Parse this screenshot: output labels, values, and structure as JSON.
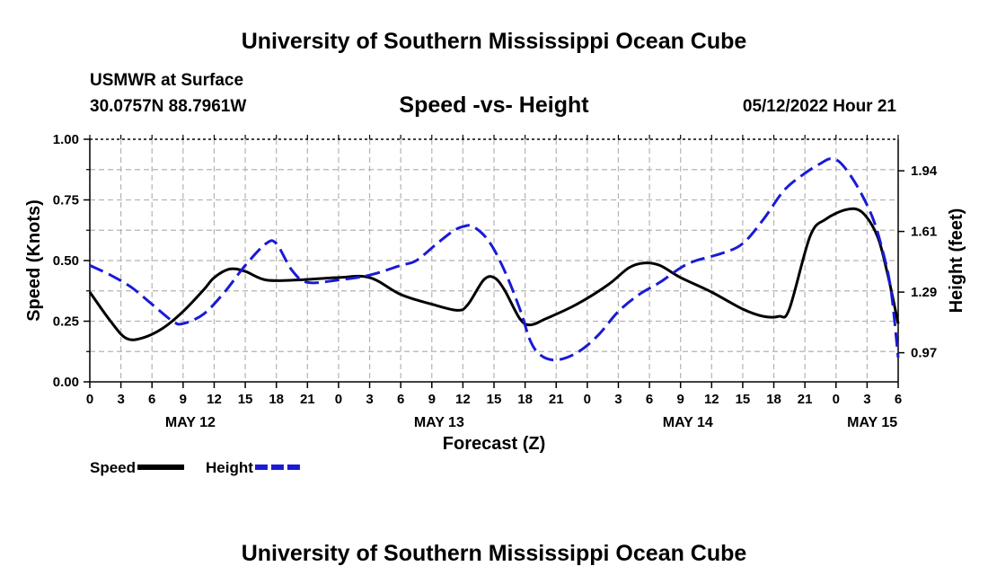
{
  "header": {
    "title": "University of Southern Mississippi Ocean Cube",
    "station": "USMWR at Surface",
    "coords": "30.0757N  88.7961W",
    "subtitle": "Speed -vs- Height",
    "datetime": "05/12/2022 Hour 21"
  },
  "footer": {
    "title": "University of Southern Mississippi Ocean Cube"
  },
  "chart_data": {
    "type": "line",
    "xlabel": "Forecast (Z)",
    "ylabel_left": "Speed (Knots)",
    "ylabel_right": "Height (feet)",
    "x_hours_start": 0,
    "x_hours_end": 78,
    "x_tick_labels": [
      "0",
      "3",
      "6",
      "9",
      "12",
      "15",
      "18",
      "21",
      "0",
      "3",
      "6",
      "9",
      "12",
      "15",
      "18",
      "21",
      "0",
      "3",
      "6",
      "9",
      "12",
      "15",
      "18",
      "21",
      "0",
      "3",
      "6"
    ],
    "date_labels": [
      {
        "label": "MAY 12",
        "hour": 9.7
      },
      {
        "label": "MAY 13",
        "hour": 33.7
      },
      {
        "label": "MAY 14",
        "hour": 57.7
      },
      {
        "label": "MAY 15",
        "hour": 75.5
      }
    ],
    "ylim_left": [
      0,
      1
    ],
    "yticks_left": [
      "0.00",
      "0.25",
      "0.50",
      "0.75",
      "1.00"
    ],
    "right_ticks": [
      {
        "label": "0.97",
        "speed_equiv": 0.12
      },
      {
        "label": "1.29",
        "speed_equiv": 0.37
      },
      {
        "label": "1.61",
        "speed_equiv": 0.62
      },
      {
        "label": "1.94",
        "speed_equiv": 0.87
      }
    ],
    "grid": true,
    "series": [
      {
        "name": "Speed",
        "axis": "left",
        "color": "#000000",
        "style": "solid",
        "points": [
          [
            0,
            0.37
          ],
          [
            2,
            0.25
          ],
          [
            3.5,
            0.18
          ],
          [
            5,
            0.18
          ],
          [
            7,
            0.22
          ],
          [
            9,
            0.29
          ],
          [
            11,
            0.38
          ],
          [
            12,
            0.43
          ],
          [
            13.5,
            0.465
          ],
          [
            15,
            0.455
          ],
          [
            17,
            0.42
          ],
          [
            20,
            0.42
          ],
          [
            24,
            0.43
          ],
          [
            27,
            0.43
          ],
          [
            30,
            0.36
          ],
          [
            33,
            0.32
          ],
          [
            35.5,
            0.295
          ],
          [
            36.5,
            0.32
          ],
          [
            38,
            0.42
          ],
          [
            39,
            0.43
          ],
          [
            40,
            0.38
          ],
          [
            41.5,
            0.26
          ],
          [
            42.5,
            0.235
          ],
          [
            44,
            0.26
          ],
          [
            47,
            0.32
          ],
          [
            50,
            0.4
          ],
          [
            52,
            0.47
          ],
          [
            53.5,
            0.49
          ],
          [
            55,
            0.48
          ],
          [
            57,
            0.43
          ],
          [
            60,
            0.37
          ],
          [
            63,
            0.3
          ],
          [
            65,
            0.27
          ],
          [
            66.5,
            0.27
          ],
          [
            67.5,
            0.3
          ],
          [
            69.5,
            0.6
          ],
          [
            71,
            0.67
          ],
          [
            73,
            0.71
          ],
          [
            74.5,
            0.7
          ],
          [
            76,
            0.6
          ],
          [
            77,
            0.44
          ],
          [
            78,
            0.24
          ]
        ]
      },
      {
        "name": "Height",
        "axis": "right",
        "color": "#1a1ad6",
        "style": "dashed",
        "points": [
          [
            0,
            0.48
          ],
          [
            2,
            0.44
          ],
          [
            4,
            0.39
          ],
          [
            6,
            0.32
          ],
          [
            8,
            0.25
          ],
          [
            9,
            0.24
          ],
          [
            11,
            0.28
          ],
          [
            13,
            0.37
          ],
          [
            15,
            0.48
          ],
          [
            17,
            0.57
          ],
          [
            18,
            0.57
          ],
          [
            19.5,
            0.46
          ],
          [
            21,
            0.41
          ],
          [
            24,
            0.42
          ],
          [
            27,
            0.44
          ],
          [
            30,
            0.48
          ],
          [
            31.5,
            0.5
          ],
          [
            33.5,
            0.57
          ],
          [
            35,
            0.62
          ],
          [
            36,
            0.64
          ],
          [
            37,
            0.64
          ],
          [
            38.5,
            0.58
          ],
          [
            40,
            0.46
          ],
          [
            41.5,
            0.3
          ],
          [
            42.5,
            0.17
          ],
          [
            43.5,
            0.11
          ],
          [
            45,
            0.09
          ],
          [
            47,
            0.12
          ],
          [
            49,
            0.19
          ],
          [
            51,
            0.29
          ],
          [
            53,
            0.36
          ],
          [
            55,
            0.41
          ],
          [
            57,
            0.47
          ],
          [
            58.5,
            0.5
          ],
          [
            61,
            0.53
          ],
          [
            63,
            0.57
          ],
          [
            65,
            0.67
          ],
          [
            67,
            0.79
          ],
          [
            69,
            0.86
          ],
          [
            70.5,
            0.9
          ],
          [
            71.5,
            0.92
          ],
          [
            72.5,
            0.9
          ],
          [
            74,
            0.81
          ],
          [
            75.5,
            0.68
          ],
          [
            76.5,
            0.54
          ],
          [
            77.3,
            0.38
          ],
          [
            78,
            0.1
          ]
        ]
      }
    ],
    "legend": [
      {
        "label": "Speed",
        "color": "#000000",
        "style": "solid"
      },
      {
        "label": "Height",
        "color": "#1a1ad6",
        "style": "dashed"
      }
    ]
  }
}
